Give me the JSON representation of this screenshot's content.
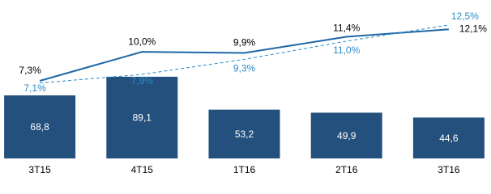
{
  "chart_data": {
    "type": "combo",
    "categories": [
      "3T15",
      "4T15",
      "1T16",
      "2T16",
      "3T16"
    ],
    "ylim": [
      0,
      164
    ],
    "y2lim": [
      0,
      14
    ],
    "series": [
      {
        "type": "bar",
        "color": "#23507c",
        "values": [
          68.8,
          89.1,
          53.2,
          49.9,
          44.6
        ],
        "value_labels": [
          "68,8",
          "89,1",
          "53,2",
          "49,9",
          "44,6"
        ]
      },
      {
        "type": "line",
        "axis": "y2",
        "color": "#1f67a6",
        "dashed": false,
        "values": [
          7.3,
          10.0,
          9.9,
          11.4,
          12.1
        ],
        "value_labels": [
          "7,3%",
          "10,0%",
          "9,9%",
          "11,4%",
          "12,1%"
        ]
      },
      {
        "type": "line",
        "axis": "y2",
        "color": "#2a8bc8",
        "dashed": true,
        "values": [
          7.1,
          7.9,
          9.3,
          11.0,
          12.5
        ],
        "value_labels": [
          "7,1%",
          "7,9%",
          "9,3%",
          "11,0%",
          "12,5%"
        ]
      }
    ]
  }
}
